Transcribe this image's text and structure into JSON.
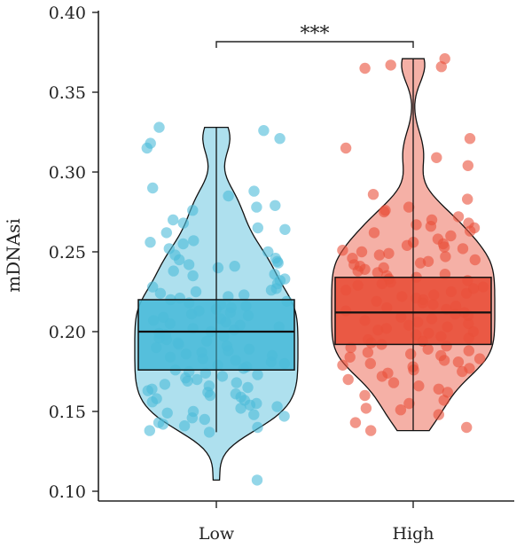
{
  "chart_data": {
    "type": "box-violin",
    "title": "",
    "xlabel": "",
    "ylabel": "mDNAsi",
    "ylim": [
      0.1,
      0.4
    ],
    "yticks": [
      "0.10",
      "0.15",
      "0.20",
      "0.25",
      "0.30",
      "0.35",
      "0.40"
    ],
    "categories": [
      "Low",
      "High"
    ],
    "grid": false,
    "legend": "none",
    "significance": "***",
    "groups": [
      {
        "category": "Low",
        "color": "#4BBBD9",
        "box": {
          "q1": 0.176,
          "median": 0.2,
          "q3": 0.22
        },
        "whisker": [
          0.137,
          0.328
        ],
        "violin_range": [
          0.107,
          0.328
        ],
        "points": [
          0.328,
          0.326,
          0.321,
          0.318,
          0.315,
          0.29,
          0.288,
          0.285,
          0.279,
          0.278,
          0.276,
          0.27,
          0.268,
          0.265,
          0.264,
          0.262,
          0.257,
          0.256,
          0.255,
          0.252,
          0.25,
          0.248,
          0.246,
          0.245,
          0.244,
          0.243,
          0.242,
          0.241,
          0.24,
          0.238,
          0.236,
          0.235,
          0.233,
          0.232,
          0.23,
          0.228,
          0.227,
          0.226,
          0.225,
          0.224,
          0.223,
          0.222,
          0.221,
          0.22,
          0.219,
          0.218,
          0.217,
          0.216,
          0.215,
          0.214,
          0.213,
          0.212,
          0.211,
          0.21,
          0.209,
          0.208,
          0.207,
          0.206,
          0.205,
          0.204,
          0.203,
          0.202,
          0.201,
          0.2,
          0.199,
          0.198,
          0.197,
          0.196,
          0.195,
          0.194,
          0.193,
          0.192,
          0.191,
          0.19,
          0.189,
          0.188,
          0.187,
          0.186,
          0.185,
          0.184,
          0.183,
          0.182,
          0.181,
          0.18,
          0.179,
          0.178,
          0.177,
          0.176,
          0.175,
          0.174,
          0.173,
          0.172,
          0.171,
          0.17,
          0.169,
          0.168,
          0.167,
          0.166,
          0.165,
          0.164,
          0.163,
          0.162,
          0.161,
          0.16,
          0.159,
          0.158,
          0.157,
          0.156,
          0.155,
          0.154,
          0.153,
          0.152,
          0.15,
          0.149,
          0.148,
          0.147,
          0.146,
          0.145,
          0.143,
          0.142,
          0.141,
          0.14,
          0.138,
          0.137,
          0.107
        ]
      },
      {
        "category": "High",
        "color": "#E9503A",
        "box": {
          "q1": 0.192,
          "median": 0.212,
          "q3": 0.234
        },
        "whisker": [
          0.138,
          0.371
        ],
        "violin_range": [
          0.138,
          0.371
        ],
        "points": [
          0.371,
          0.367,
          0.366,
          0.365,
          0.315,
          0.321,
          0.309,
          0.304,
          0.286,
          0.283,
          0.278,
          0.276,
          0.275,
          0.272,
          0.27,
          0.268,
          0.267,
          0.266,
          0.265,
          0.263,
          0.262,
          0.26,
          0.258,
          0.256,
          0.255,
          0.254,
          0.253,
          0.252,
          0.251,
          0.25,
          0.249,
          0.248,
          0.247,
          0.246,
          0.245,
          0.244,
          0.243,
          0.242,
          0.241,
          0.24,
          0.239,
          0.238,
          0.237,
          0.236,
          0.235,
          0.234,
          0.233,
          0.232,
          0.231,
          0.23,
          0.229,
          0.228,
          0.227,
          0.226,
          0.225,
          0.224,
          0.223,
          0.222,
          0.221,
          0.22,
          0.219,
          0.218,
          0.217,
          0.216,
          0.215,
          0.214,
          0.213,
          0.212,
          0.211,
          0.21,
          0.209,
          0.208,
          0.207,
          0.206,
          0.205,
          0.204,
          0.203,
          0.202,
          0.201,
          0.2,
          0.199,
          0.198,
          0.197,
          0.196,
          0.195,
          0.194,
          0.193,
          0.192,
          0.191,
          0.19,
          0.189,
          0.188,
          0.187,
          0.186,
          0.185,
          0.184,
          0.183,
          0.182,
          0.181,
          0.18,
          0.179,
          0.178,
          0.177,
          0.176,
          0.175,
          0.174,
          0.172,
          0.17,
          0.168,
          0.166,
          0.164,
          0.162,
          0.16,
          0.157,
          0.155,
          0.152,
          0.151,
          0.148,
          0.143,
          0.14,
          0.138
        ]
      }
    ]
  }
}
